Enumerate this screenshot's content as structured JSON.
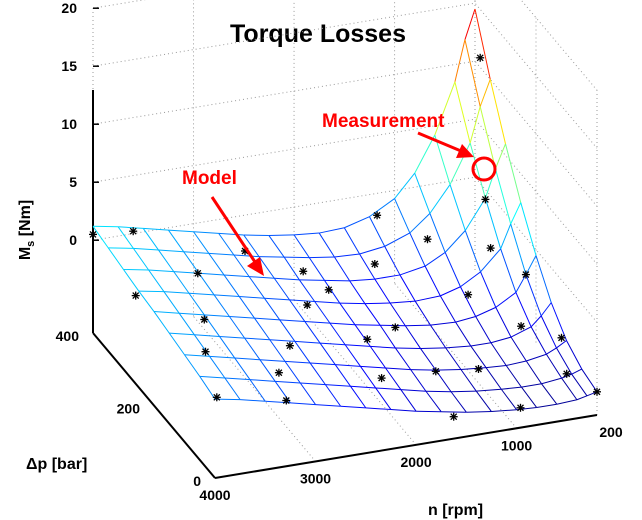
{
  "chart_data": {
    "type": "surface3d",
    "title": "Torque Losses",
    "zlabel_main": "M",
    "zlabel_sub": "s",
    "zlabel_unit": " [Nm]",
    "xlabel": "n [rpm]",
    "ylabel": "Δp [bar]",
    "x_ticks": [
      "4000",
      "3000",
      "2000",
      "1000",
      "200"
    ],
    "y_ticks": [
      "0",
      "200",
      "400"
    ],
    "z_ticks": [
      "20",
      "15",
      "10",
      "5",
      "0"
    ],
    "zlim": [
      -8,
      20
    ],
    "grid": true,
    "colormap": "jet",
    "annotations": {
      "model": "Model",
      "measurement": "Measurement"
    },
    "surface": {
      "n_rpm": [
        200,
        300,
        400,
        600,
        800,
        1000,
        1250,
        1500,
        1750,
        2000,
        2250,
        2500,
        2750,
        3000,
        3250,
        3500,
        3750,
        4000
      ],
      "dp_bar": [
        0,
        50,
        100,
        150,
        200,
        250,
        300,
        350,
        400
      ],
      "ms_nm": [
        [
          -6.0,
          -6.2,
          -6.4,
          -6.5,
          -6.5,
          -6.4,
          -6.2,
          -5.9,
          -5.5,
          -5.1,
          -4.6,
          -4.1,
          -3.6,
          -3.1,
          -2.6,
          -2.1,
          -1.6,
          -1.2
        ],
        [
          -5.6,
          -5.9,
          -6.1,
          -6.3,
          -6.3,
          -6.2,
          -6.0,
          -5.7,
          -5.3,
          -4.8,
          -4.3,
          -3.8,
          -3.3,
          -2.8,
          -2.3,
          -1.8,
          -1.3,
          -0.8
        ],
        [
          -4.7,
          -5.2,
          -5.6,
          -5.9,
          -6.0,
          -5.9,
          -5.7,
          -5.4,
          -5.0,
          -4.5,
          -4.0,
          -3.5,
          -3.0,
          -2.5,
          -2.0,
          -1.5,
          -1.0,
          -0.5
        ],
        [
          -3.0,
          -4.0,
          -4.8,
          -5.4,
          -5.6,
          -5.6,
          -5.4,
          -5.1,
          -4.7,
          -4.2,
          -3.7,
          -3.2,
          -2.7,
          -2.2,
          -1.7,
          -1.2,
          -0.7,
          -0.2
        ],
        [
          -0.5,
          -2.0,
          -3.4,
          -4.4,
          -4.9,
          -5.1,
          -5.0,
          -4.7,
          -4.3,
          -3.9,
          -3.4,
          -2.9,
          -2.4,
          -1.9,
          -1.4,
          -0.9,
          -0.4,
          0.1
        ],
        [
          2.5,
          0.8,
          -1.2,
          -2.9,
          -3.9,
          -4.4,
          -4.5,
          -4.3,
          -4.0,
          -3.6,
          -3.1,
          -2.6,
          -2.1,
          -1.6,
          -1.1,
          -0.6,
          -0.1,
          0.3
        ],
        [
          6.0,
          4.0,
          1.6,
          -0.9,
          -2.5,
          -3.4,
          -3.8,
          -3.8,
          -3.6,
          -3.2,
          -2.8,
          -2.3,
          -1.8,
          -1.3,
          -0.8,
          -0.3,
          0.2,
          0.6
        ],
        [
          10.0,
          7.8,
          4.8,
          1.5,
          -0.7,
          -2.1,
          -2.9,
          -3.2,
          -3.1,
          -2.8,
          -2.4,
          -2.0,
          -1.5,
          -1.0,
          -0.5,
          0.0,
          0.5,
          0.9
        ],
        [
          14.5,
          12.0,
          8.5,
          4.2,
          1.2,
          -0.7,
          -1.9,
          -2.5,
          -2.6,
          -2.4,
          -2.1,
          -1.7,
          -1.2,
          -0.7,
          -0.2,
          0.3,
          0.8,
          1.2
        ]
      ]
    },
    "measurements": [
      {
        "n": 200,
        "dp": 400,
        "ms": 15.6
      },
      {
        "n": 300,
        "dp": 350,
        "ms": 12.0
      },
      {
        "n": 400,
        "dp": 300,
        "ms": 1.5
      },
      {
        "n": 500,
        "dp": 250,
        "ms": -1.0
      },
      {
        "n": 300,
        "dp": 200,
        "ms": -2.0
      },
      {
        "n": 500,
        "dp": 150,
        "ms": -4.6
      },
      {
        "n": 250,
        "dp": 100,
        "ms": -4.4
      },
      {
        "n": 350,
        "dp": 50,
        "ms": -5.8
      },
      {
        "n": 200,
        "dp": 0,
        "ms": -6.0
      },
      {
        "n": 900,
        "dp": 325,
        "ms": -2.0
      },
      {
        "n": 800,
        "dp": 225,
        "ms": -3.8
      },
      {
        "n": 1000,
        "dp": 125,
        "ms": -6.8
      },
      {
        "n": 900,
        "dp": 20,
        "ms": -7.0
      },
      {
        "n": 1250,
        "dp": 375,
        "ms": -1.0
      },
      {
        "n": 1500,
        "dp": 300,
        "ms": -2.5
      },
      {
        "n": 1600,
        "dp": 200,
        "ms": -4.7
      },
      {
        "n": 1500,
        "dp": 100,
        "ms": -5.5
      },
      {
        "n": 1550,
        "dp": 25,
        "ms": -7.0
      },
      {
        "n": 2000,
        "dp": 370,
        "ms": -4.6
      },
      {
        "n": 2050,
        "dp": 270,
        "ms": -3.0
      },
      {
        "n": 2000,
        "dp": 160,
        "ms": -3.9
      },
      {
        "n": 2100,
        "dp": 80,
        "ms": -4.6
      },
      {
        "n": 2400,
        "dp": 225,
        "ms": -2.4
      },
      {
        "n": 2700,
        "dp": 330,
        "ms": -0.6
      },
      {
        "n": 2800,
        "dp": 150,
        "ms": -3.0
      },
      {
        "n": 3000,
        "dp": 120,
        "ms": -4.1
      },
      {
        "n": 3200,
        "dp": 320,
        "ms": -1.5
      },
      {
        "n": 3200,
        "dp": 30,
        "ms": -3.4
      },
      {
        "n": 3600,
        "dp": 400,
        "ms": 0.2
      },
      {
        "n": 3500,
        "dp": 200,
        "ms": -1.3
      },
      {
        "n": 3700,
        "dp": 130,
        "ms": -1.6
      },
      {
        "n": 3800,
        "dp": 60,
        "ms": -3.2
      },
      {
        "n": 4000,
        "dp": 400,
        "ms": 0.5
      },
      {
        "n": 4000,
        "dp": 260,
        "ms": -0.4
      }
    ]
  }
}
